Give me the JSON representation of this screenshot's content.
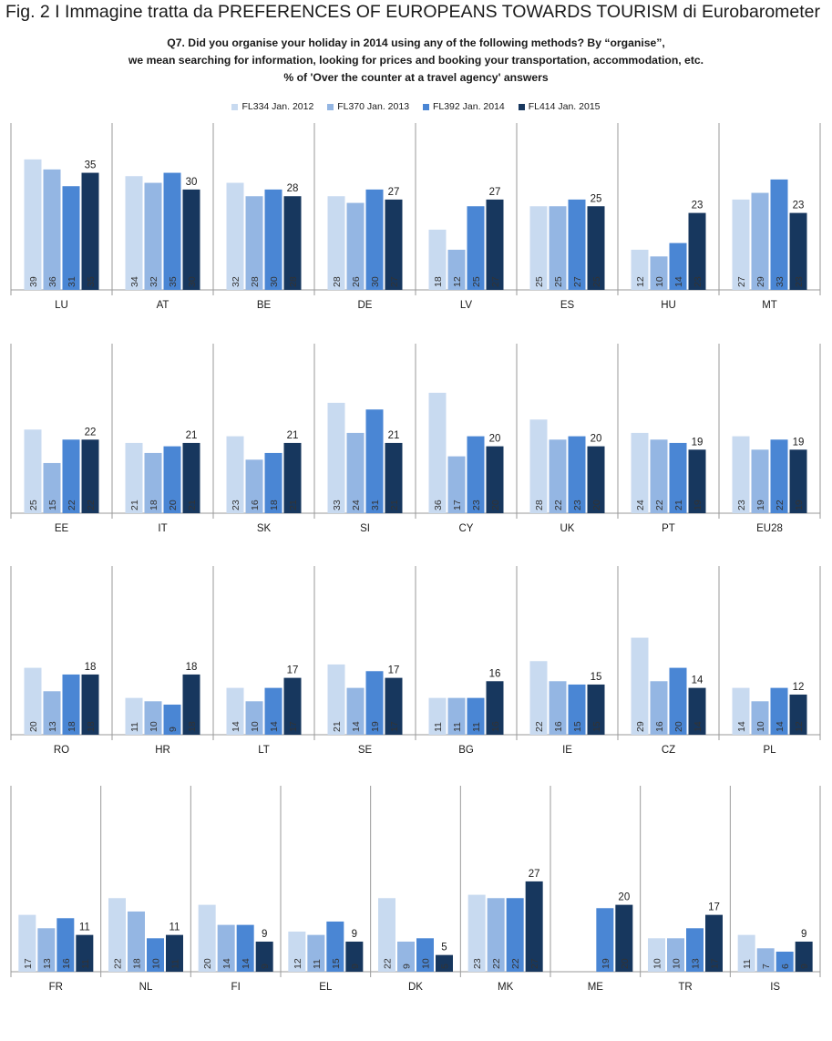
{
  "figure_title": "Fig. 2 I Immagine tratta da PREFERENCES OF EUROPEANS TOWARDS TOURISM di Eurobarometer",
  "subtitle_lines": [
    "Q7. Did you organise your holiday in 2014 using any of the following methods? By “organise”,",
    "we mean searching for information, looking for prices and booking your transportation, accommodation, etc.",
    "% of  'Over the counter at a travel agency' answers"
  ],
  "colors": [
    "#c8daf0",
    "#94b6e3",
    "#4a86d4",
    "#17375e"
  ],
  "chart_data": {
    "type": "bar",
    "title": "",
    "ylim": [
      0,
      42
    ],
    "series_names": [
      "FL334 Jan. 2012",
      "FL370 Jan. 2013",
      "FL392 Jan. 2014",
      "FL414 Jan. 2015"
    ],
    "panels": [
      {
        "country": "LU",
        "values": [
          39,
          36,
          31,
          35
        ]
      },
      {
        "country": "AT",
        "values": [
          34,
          32,
          35,
          30
        ]
      },
      {
        "country": "BE",
        "values": [
          32,
          28,
          30,
          28
        ]
      },
      {
        "country": "DE",
        "values": [
          28,
          26,
          30,
          27
        ]
      },
      {
        "country": "LV",
        "values": [
          18,
          12,
          25,
          27
        ]
      },
      {
        "country": "ES",
        "values": [
          25,
          25,
          27,
          25
        ]
      },
      {
        "country": "HU",
        "values": [
          12,
          10,
          14,
          23
        ]
      },
      {
        "country": "MT",
        "values": [
          27,
          29,
          33,
          23
        ]
      },
      {
        "country": "EE",
        "values": [
          25,
          15,
          22,
          22
        ]
      },
      {
        "country": "IT",
        "values": [
          21,
          18,
          20,
          21
        ]
      },
      {
        "country": "SK",
        "values": [
          23,
          16,
          18,
          21
        ]
      },
      {
        "country": "SI",
        "values": [
          33,
          24,
          31,
          21
        ]
      },
      {
        "country": "CY",
        "values": [
          36,
          17,
          23,
          20
        ]
      },
      {
        "country": "UK",
        "values": [
          28,
          22,
          23,
          20
        ]
      },
      {
        "country": "PT",
        "values": [
          24,
          22,
          21,
          19
        ]
      },
      {
        "country": "EU28",
        "values": [
          23,
          19,
          22,
          19
        ]
      },
      {
        "country": "RO",
        "values": [
          20,
          13,
          18,
          18
        ]
      },
      {
        "country": "HR",
        "values": [
          11,
          10,
          9,
          18
        ]
      },
      {
        "country": "LT",
        "values": [
          14,
          10,
          14,
          17
        ]
      },
      {
        "country": "SE",
        "values": [
          21,
          14,
          19,
          17
        ]
      },
      {
        "country": "BG",
        "values": [
          11,
          11,
          11,
          16
        ]
      },
      {
        "country": "IE",
        "values": [
          22,
          16,
          15,
          15
        ]
      },
      {
        "country": "CZ",
        "values": [
          29,
          16,
          20,
          14
        ]
      },
      {
        "country": "PL",
        "values": [
          14,
          10,
          14,
          12
        ]
      },
      {
        "country": "FR",
        "values": [
          17,
          13,
          16,
          11
        ]
      },
      {
        "country": "NL",
        "values": [
          22,
          18,
          10,
          11
        ]
      },
      {
        "country": "FI",
        "values": [
          20,
          14,
          14,
          9
        ]
      },
      {
        "country": "EL",
        "values": [
          12,
          11,
          15,
          9
        ]
      },
      {
        "country": "DK",
        "values": [
          22,
          9,
          10,
          5
        ]
      },
      {
        "country": "MK",
        "values": [
          23,
          22,
          22,
          27
        ]
      },
      {
        "country": "ME",
        "values": [
          null,
          null,
          19,
          20
        ]
      },
      {
        "country": "TR",
        "values": [
          10,
          10,
          13,
          17
        ]
      },
      {
        "country": "IS",
        "values": [
          11,
          7,
          6,
          9
        ]
      }
    ]
  }
}
